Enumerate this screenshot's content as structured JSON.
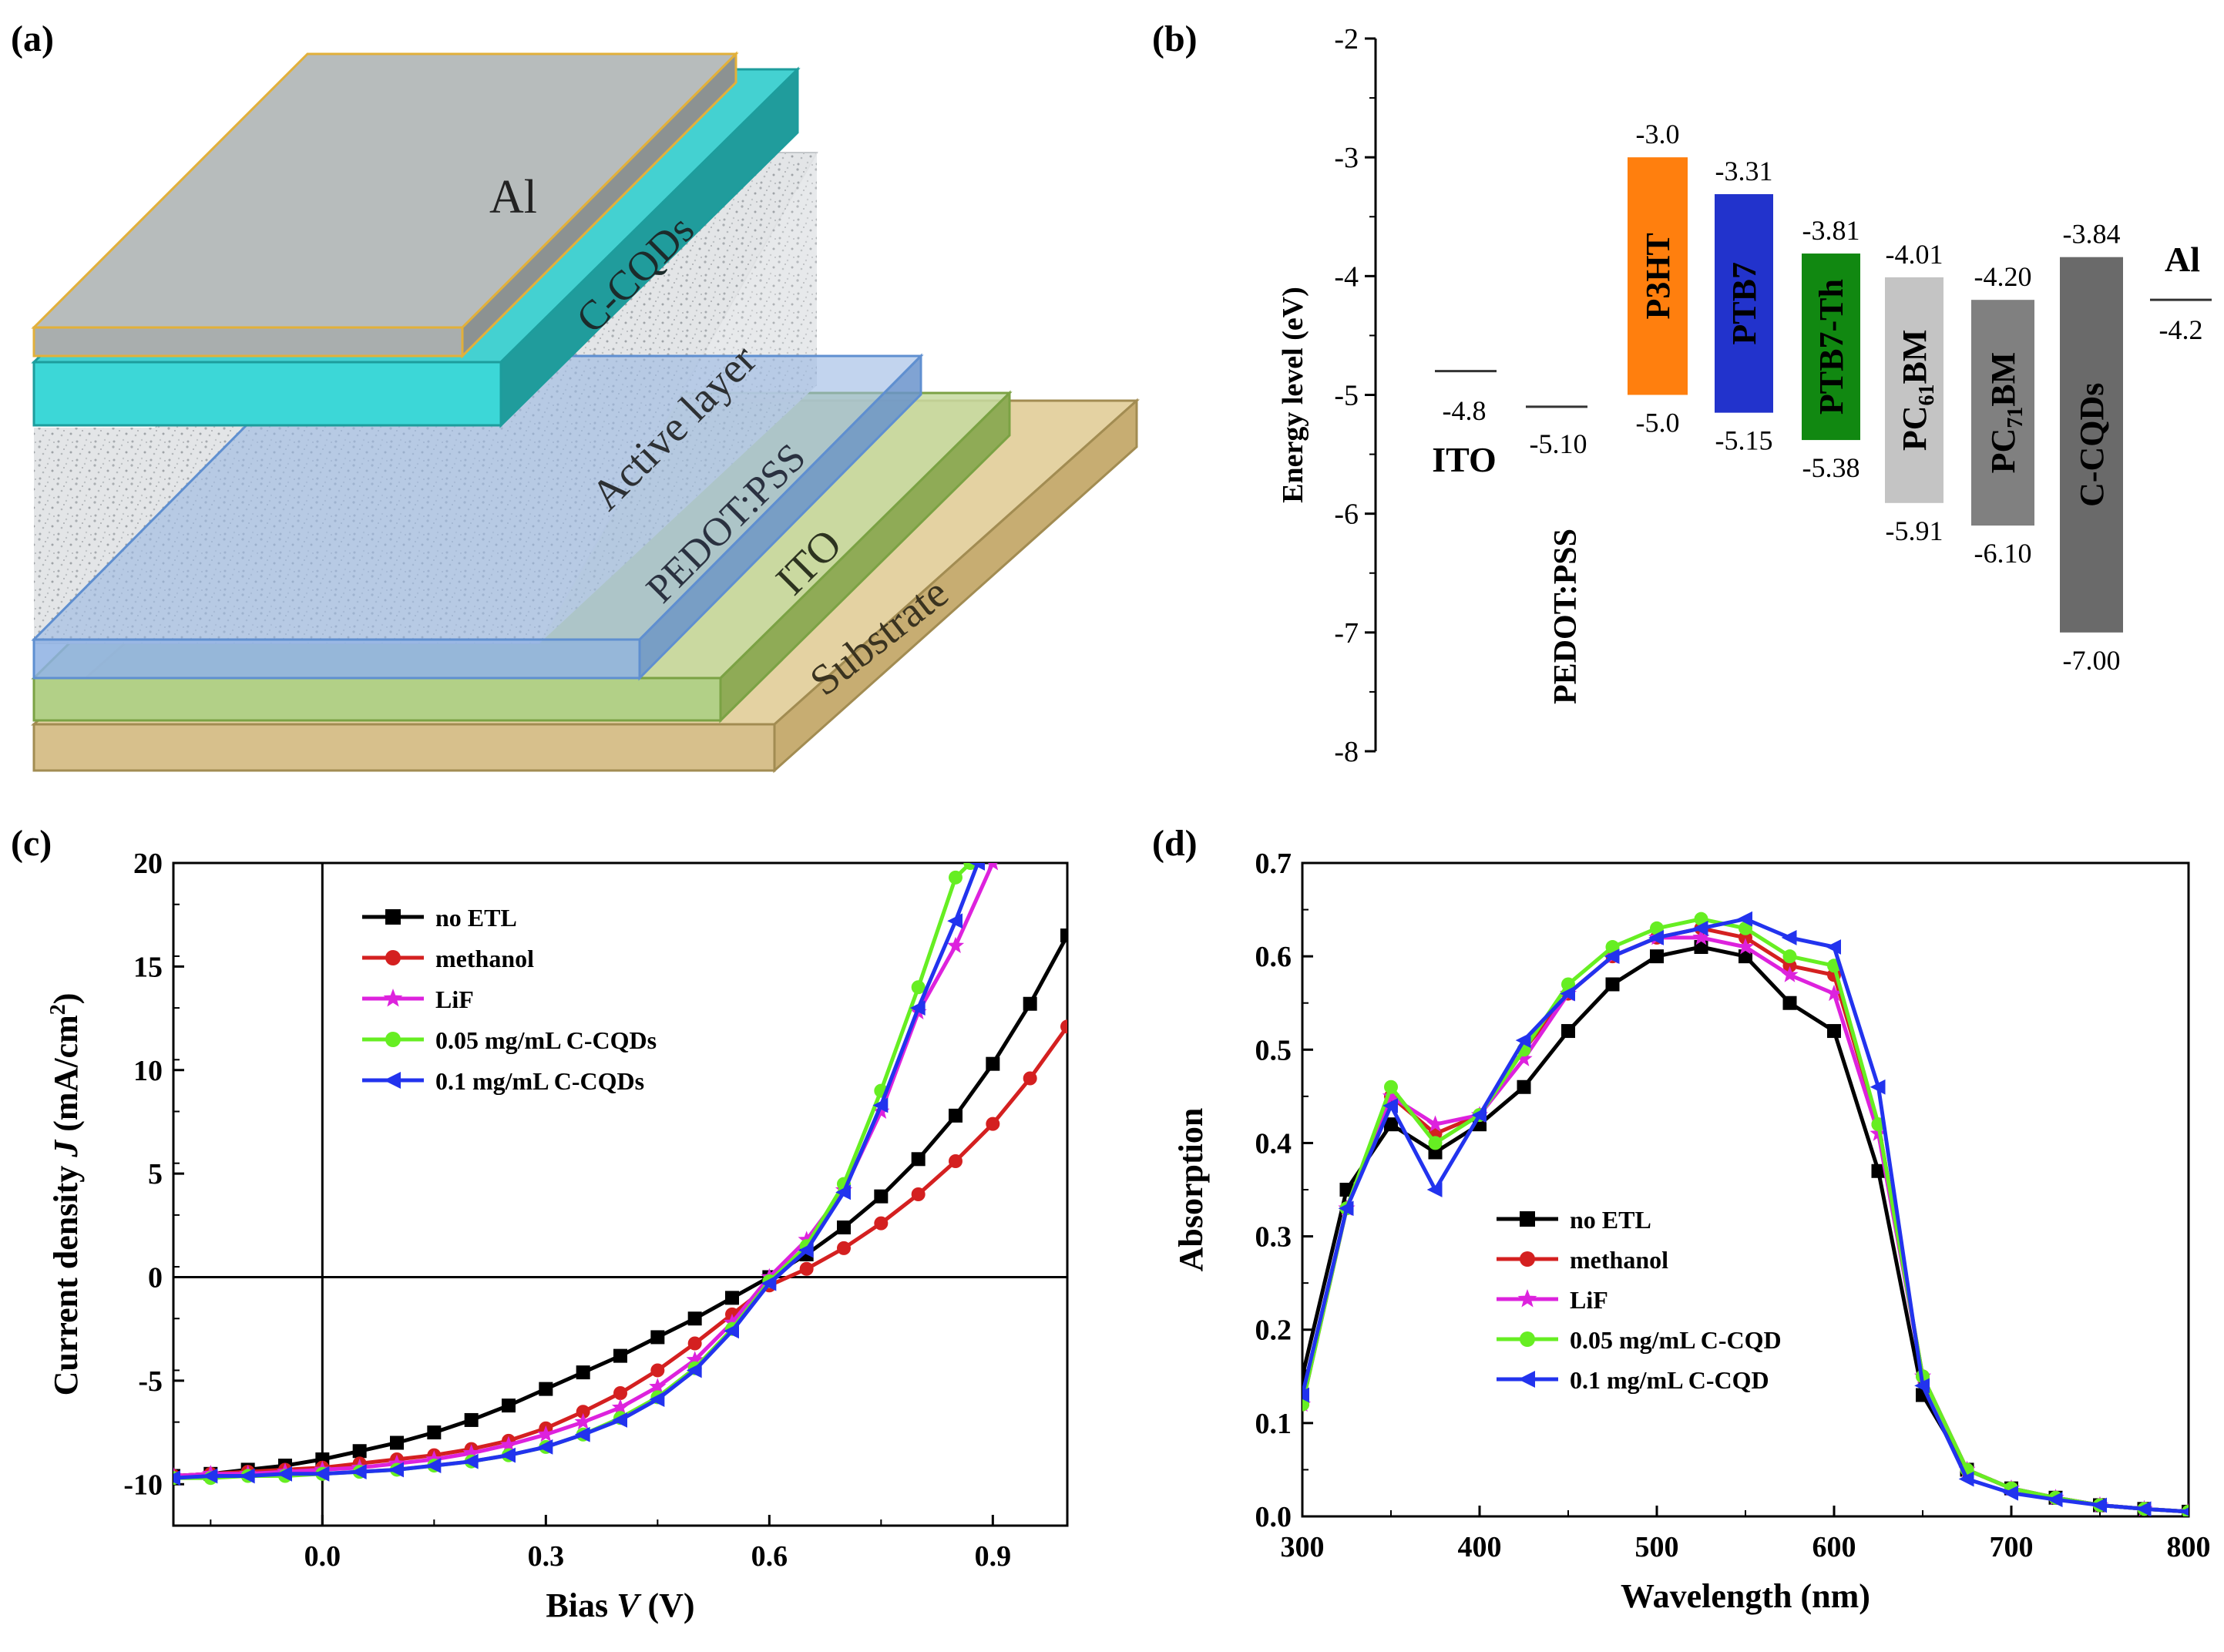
{
  "panels": {
    "a": {
      "label": "(a)",
      "layers": [
        "Al",
        "C-CQDs",
        "Active layer",
        "PEDOT:PSS",
        "ITO",
        "Substrate"
      ]
    },
    "b": {
      "label": "(b)"
    },
    "c": {
      "label": "(c)"
    },
    "d": {
      "label": "(d)"
    }
  },
  "colors": {
    "no ETL": "#000000",
    "methanol": "#d42020",
    "LiF": "#dd22dd",
    "0.05": "#66ee22",
    "0.1": "#2233ee"
  },
  "chart_data": [
    {
      "panel": "b",
      "type": "bar",
      "ylabel": "Energy level (eV)",
      "ylim": [
        -8,
        -2
      ],
      "yticks": [
        -2,
        -3,
        -4,
        -5,
        -6,
        -7,
        -8
      ],
      "levels": [
        {
          "name": "ITO",
          "value": -4.8,
          "label": "-4.8"
        },
        {
          "name": "PEDOT:PSS",
          "value": -5.1,
          "label": "-5.10"
        },
        {
          "name": "Al",
          "value": -4.2,
          "label": "-4.2"
        }
      ],
      "bars": [
        {
          "name": "P3HT",
          "top": -3.0,
          "bottom": -5.0,
          "top_label": "-3.0",
          "bottom_label": "-5.0",
          "color": "#ff7f0e"
        },
        {
          "name": "PTB7",
          "top": -3.31,
          "bottom": -5.15,
          "top_label": "-3.31",
          "bottom_label": "-5.15",
          "color": "#2233cc"
        },
        {
          "name": "PTB7-Th",
          "top": -3.81,
          "bottom": -5.38,
          "top_label": "-3.81",
          "bottom_label": "-5.38",
          "color": "#118811"
        },
        {
          "name": "PC61BM",
          "name_main": "PC",
          "name_sub": "61",
          "name_end": "BM",
          "top": -4.01,
          "bottom": -5.91,
          "top_label": "-4.01",
          "bottom_label": "-5.91",
          "color": "#c4c4c4"
        },
        {
          "name": "PC71BM",
          "name_main": "PC",
          "name_sub": "71",
          "name_end": "BM",
          "top": -4.2,
          "bottom": -6.1,
          "top_label": "-4.20",
          "bottom_label": "-6.10",
          "color": "#808080"
        },
        {
          "name": "C-CQDs",
          "top": -3.84,
          "bottom": -7.0,
          "top_label": "-3.84",
          "bottom_label": "-7.00",
          "color": "#6a6a6a"
        }
      ]
    },
    {
      "panel": "c",
      "type": "line",
      "xlabel_pre": "Bias ",
      "xlabel_var": "V",
      "xlabel_post": " (V)",
      "ylabel_pre": "Current density ",
      "ylabel_var": "J",
      "ylabel_post": " (mA/cm",
      "ylabel_sup": "2",
      "ylabel_close": ")",
      "xlim": [
        -0.2,
        1.0
      ],
      "ylim": [
        -12,
        20
      ],
      "xticks": [
        0.0,
        0.3,
        0.6,
        0.9
      ],
      "xtick_labels": [
        "0.0",
        "0.3",
        "0.6",
        "0.9"
      ],
      "yticks": [
        -10,
        -5,
        0,
        5,
        10,
        15,
        20
      ],
      "ytick_labels": [
        "-10",
        "-5",
        "0",
        "5",
        "10",
        "15",
        "20"
      ],
      "legend": "top-left",
      "series": [
        {
          "name": "no ETL",
          "key": "no ETL",
          "marker": "square",
          "x": [
            -0.2,
            -0.15,
            -0.1,
            -0.05,
            0.0,
            0.05,
            0.1,
            0.15,
            0.2,
            0.25,
            0.3,
            0.35,
            0.4,
            0.45,
            0.5,
            0.55,
            0.6,
            0.65,
            0.7,
            0.75,
            0.8,
            0.85,
            0.9,
            0.95,
            1.0
          ],
          "y": [
            -9.6,
            -9.5,
            -9.3,
            -9.1,
            -8.8,
            -8.4,
            -8.0,
            -7.5,
            -6.9,
            -6.2,
            -5.4,
            -4.6,
            -3.8,
            -2.9,
            -2.0,
            -1.0,
            0.0,
            1.1,
            2.4,
            3.9,
            5.7,
            7.8,
            10.3,
            13.2,
            16.5
          ]
        },
        {
          "name": "methanol",
          "key": "methanol",
          "marker": "circle",
          "x": [
            -0.2,
            -0.15,
            -0.1,
            -0.05,
            0.0,
            0.05,
            0.1,
            0.15,
            0.2,
            0.25,
            0.3,
            0.35,
            0.4,
            0.45,
            0.5,
            0.55,
            0.6,
            0.65,
            0.7,
            0.75,
            0.8,
            0.85,
            0.9,
            0.95,
            1.0
          ],
          "y": [
            -9.6,
            -9.5,
            -9.4,
            -9.3,
            -9.2,
            -9.0,
            -8.8,
            -8.6,
            -8.3,
            -7.9,
            -7.3,
            -6.5,
            -5.6,
            -4.5,
            -3.2,
            -1.8,
            -0.4,
            0.4,
            1.4,
            2.6,
            4.0,
            5.6,
            7.4,
            9.6,
            12.1
          ]
        },
        {
          "name": "LiF",
          "key": "LiF",
          "marker": "star",
          "x": [
            -0.2,
            -0.15,
            -0.1,
            -0.05,
            0.0,
            0.05,
            0.1,
            0.15,
            0.2,
            0.25,
            0.3,
            0.35,
            0.4,
            0.45,
            0.5,
            0.55,
            0.6,
            0.65,
            0.7,
            0.75,
            0.8,
            0.85,
            0.9
          ],
          "y": [
            -9.6,
            -9.5,
            -9.5,
            -9.4,
            -9.3,
            -9.2,
            -9.0,
            -8.8,
            -8.5,
            -8.1,
            -7.6,
            -7.0,
            -6.3,
            -5.3,
            -4.0,
            -2.2,
            0.0,
            1.8,
            4.2,
            8.0,
            12.8,
            16.0,
            20.0
          ]
        },
        {
          "name": "0.05 mg/mL C-CQDs",
          "key": "0.05",
          "marker": "circle",
          "x": [
            -0.2,
            -0.15,
            -0.1,
            -0.05,
            0.0,
            0.05,
            0.1,
            0.15,
            0.2,
            0.25,
            0.3,
            0.35,
            0.4,
            0.45,
            0.5,
            0.55,
            0.6,
            0.65,
            0.7,
            0.75,
            0.8,
            0.85,
            0.87
          ],
          "y": [
            -9.7,
            -9.7,
            -9.6,
            -9.6,
            -9.5,
            -9.4,
            -9.3,
            -9.1,
            -8.9,
            -8.6,
            -8.2,
            -7.6,
            -6.8,
            -5.8,
            -4.4,
            -2.5,
            -0.2,
            1.5,
            4.5,
            9.0,
            14.0,
            19.3,
            20.0
          ]
        },
        {
          "name": "0.1 mg/mL C-CQDs",
          "key": "0.1",
          "marker": "triangle-left",
          "x": [
            -0.2,
            -0.15,
            -0.1,
            -0.05,
            0.0,
            0.05,
            0.1,
            0.15,
            0.2,
            0.25,
            0.3,
            0.35,
            0.4,
            0.45,
            0.5,
            0.55,
            0.6,
            0.65,
            0.7,
            0.75,
            0.8,
            0.85,
            0.88
          ],
          "y": [
            -9.7,
            -9.6,
            -9.6,
            -9.5,
            -9.5,
            -9.4,
            -9.3,
            -9.1,
            -8.9,
            -8.6,
            -8.2,
            -7.6,
            -6.9,
            -5.9,
            -4.5,
            -2.6,
            -0.3,
            1.3,
            4.1,
            8.3,
            13.0,
            17.2,
            20.0
          ]
        }
      ]
    },
    {
      "panel": "d",
      "type": "line",
      "xlabel": "Wavelength (nm)",
      "ylabel": "Absorption",
      "xlim": [
        300,
        800
      ],
      "ylim": [
        0.0,
        0.7
      ],
      "xticks": [
        300,
        400,
        500,
        600,
        700,
        800
      ],
      "xtick_labels": [
        "300",
        "400",
        "500",
        "600",
        "700",
        "800"
      ],
      "yticks": [
        0.0,
        0.1,
        0.2,
        0.3,
        0.4,
        0.5,
        0.6,
        0.7
      ],
      "ytick_labels": [
        "0.0",
        "0.1",
        "0.2",
        "0.3",
        "0.4",
        "0.5",
        "0.6",
        "0.7"
      ],
      "legend": "lower-left",
      "series": [
        {
          "name": "no ETL",
          "key": "no ETL",
          "marker": "square",
          "x": [
            300,
            325,
            350,
            375,
            400,
            425,
            450,
            475,
            500,
            525,
            550,
            575,
            600,
            625,
            650,
            675,
            700,
            725,
            750,
            775,
            800
          ],
          "y": [
            0.15,
            0.35,
            0.42,
            0.39,
            0.42,
            0.46,
            0.52,
            0.57,
            0.6,
            0.61,
            0.6,
            0.55,
            0.52,
            0.37,
            0.13,
            0.05,
            0.03,
            0.02,
            0.012,
            0.008,
            0.005
          ]
        },
        {
          "name": "methanol",
          "key": "methanol",
          "marker": "circle",
          "x": [
            300,
            325,
            350,
            375,
            400,
            425,
            450,
            475,
            500,
            525,
            550,
            575,
            600,
            625,
            650,
            675,
            700,
            725,
            750,
            775,
            800
          ],
          "y": [
            0.12,
            0.33,
            0.45,
            0.41,
            0.43,
            0.5,
            0.56,
            0.6,
            0.62,
            0.63,
            0.62,
            0.59,
            0.58,
            0.42,
            0.15,
            0.05,
            0.03,
            0.02,
            0.012,
            0.008,
            0.005
          ]
        },
        {
          "name": "LiF",
          "key": "LiF",
          "marker": "star",
          "x": [
            300,
            325,
            350,
            375,
            400,
            425,
            450,
            475,
            500,
            525,
            550,
            575,
            600,
            625,
            650,
            675,
            700,
            725,
            750,
            775,
            800
          ],
          "y": [
            0.12,
            0.33,
            0.45,
            0.42,
            0.43,
            0.49,
            0.56,
            0.6,
            0.62,
            0.62,
            0.61,
            0.58,
            0.56,
            0.41,
            0.15,
            0.05,
            0.03,
            0.02,
            0.012,
            0.008,
            0.005
          ]
        },
        {
          "name": "0.05 mg/mL C-CQD",
          "key": "0.05",
          "marker": "circle",
          "x": [
            300,
            325,
            350,
            375,
            400,
            425,
            450,
            475,
            500,
            525,
            550,
            575,
            600,
            625,
            650,
            675,
            700,
            725,
            750,
            775,
            800
          ],
          "y": [
            0.12,
            0.33,
            0.46,
            0.4,
            0.43,
            0.5,
            0.57,
            0.61,
            0.63,
            0.64,
            0.63,
            0.6,
            0.59,
            0.42,
            0.15,
            0.05,
            0.03,
            0.02,
            0.012,
            0.008,
            0.005
          ]
        },
        {
          "name": "0.1 mg/mL C-CQD",
          "key": "0.1",
          "marker": "triangle-left",
          "x": [
            300,
            325,
            350,
            375,
            400,
            425,
            450,
            475,
            500,
            525,
            550,
            575,
            600,
            625,
            650,
            675,
            700,
            725,
            750,
            775,
            800
          ],
          "y": [
            0.13,
            0.33,
            0.44,
            0.35,
            0.43,
            0.51,
            0.56,
            0.6,
            0.62,
            0.63,
            0.64,
            0.62,
            0.61,
            0.46,
            0.14,
            0.04,
            0.025,
            0.018,
            0.012,
            0.008,
            0.005
          ]
        }
      ]
    }
  ]
}
